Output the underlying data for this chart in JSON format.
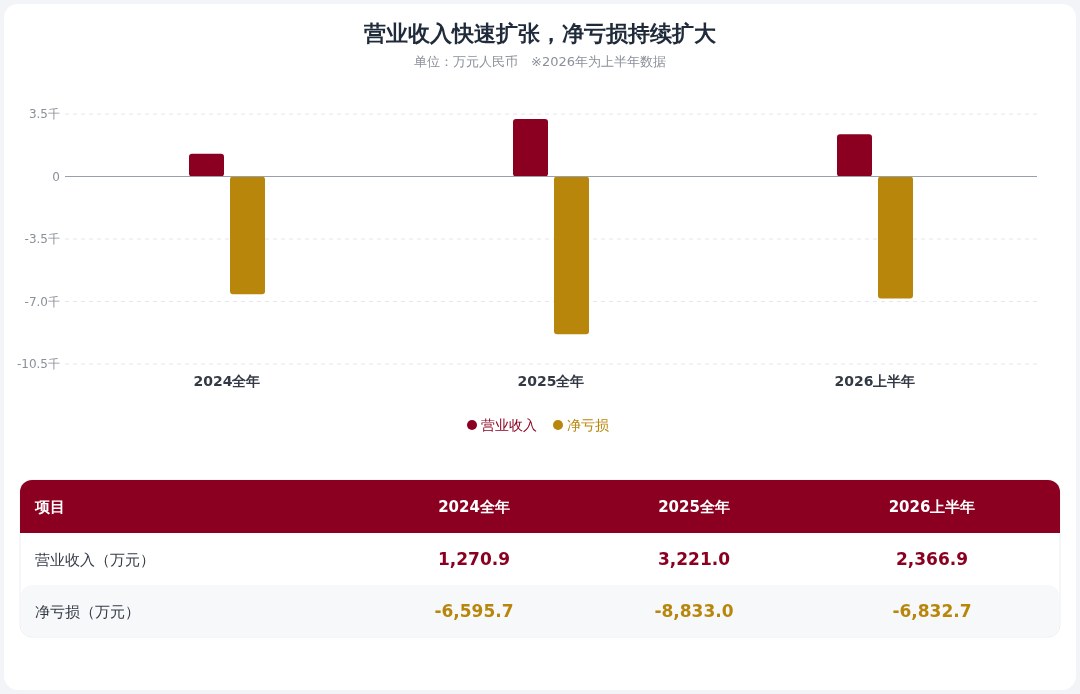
{
  "chart_data": [
    {
      "type": "bar",
      "title": "营业收入快速扩张，净亏损持续扩大",
      "subtitle": "单位：万元人民币　※2026年为上半年数据",
      "categories": [
        "2024全年",
        "2025全年",
        "2026上半年"
      ],
      "series": [
        {
          "name": "营业收入",
          "color": "#8b0020",
          "values": [
            1.2709,
            3.221,
            2.3669
          ]
        },
        {
          "name": "净亏损",
          "color": "#b8860b",
          "values": [
            -6.5957,
            -8.833,
            -6.8327
          ]
        }
      ],
      "ylim": [
        -10.5,
        3.5
      ],
      "yticks": [
        {
          "value": 3.5,
          "label": "3.5千"
        },
        0,
        {
          "value": -3.5,
          "label": "-3.5千"
        },
        {
          "value": -7,
          "label": "-7.0千"
        },
        {
          "value": -10.5,
          "label": "-10.5千"
        }
      ],
      "grid": "y",
      "legend": "bottom"
    },
    {
      "type": "other",
      "title": "项目",
      "categories": [
        "2024全年",
        "2025全年",
        "2026上半年"
      ],
      "series": [
        {
          "name": "营业收入（万元）",
          "values": [
            1270.9,
            3221.0,
            2366.9
          ],
          "value_labels": [
            "1,270.9",
            "3,221.0",
            "2,366.9"
          ]
        },
        {
          "name": "净亏损（万元）",
          "values": [
            -6595.7,
            -8833.0,
            -6832.7
          ],
          "value_labels": [
            "-6,595.7",
            "-8,833.0",
            "-6,832.7"
          ]
        }
      ]
    }
  ]
}
